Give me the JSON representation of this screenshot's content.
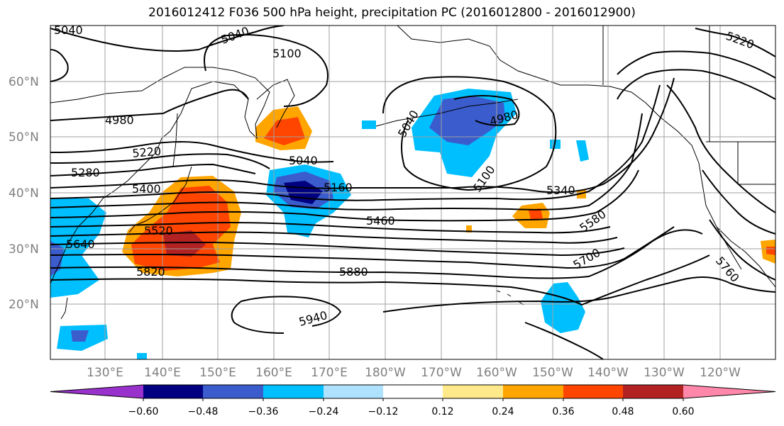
{
  "title": "2016012412 F036 500 hPa height, precipitation PC (2016012800 - 2016012900)",
  "lat_labels": [
    "60°N",
    "50°N",
    "40°N",
    "30°N",
    "20°N"
  ],
  "lon_labels": [
    "130°E",
    "140°E",
    "150°E",
    "160°E",
    "170°E",
    "180°W",
    "170°W",
    "160°W",
    "150°W",
    "140°W",
    "130°W",
    "120°W"
  ],
  "contour_labels": [
    {
      "text": "5040"
    },
    {
      "text": "5040"
    },
    {
      "text": "5100"
    },
    {
      "text": "5220"
    },
    {
      "text": "4980"
    },
    {
      "text": "5220"
    },
    {
      "text": "5280"
    },
    {
      "text": "5400"
    },
    {
      "text": "5040"
    },
    {
      "text": "5040"
    },
    {
      "text": "4980"
    },
    {
      "text": "5160"
    },
    {
      "text": "5100"
    },
    {
      "text": "5340"
    },
    {
      "text": "5460"
    },
    {
      "text": "5580"
    },
    {
      "text": "5520"
    },
    {
      "text": "5640"
    },
    {
      "text": "5700"
    },
    {
      "text": "5820"
    },
    {
      "text": "5880"
    },
    {
      "text": "5760"
    },
    {
      "text": "5940"
    }
  ],
  "colorbar": {
    "ticks": [
      "−0.60",
      "−0.48",
      "−0.36",
      "−0.24",
      "−0.12",
      "0.12",
      "0.24",
      "0.36",
      "0.48",
      "0.60"
    ],
    "colors": [
      "#9932cc",
      "#000080",
      "#3a5ccc",
      "#00bfff",
      "#aee2ff",
      "#ffffff",
      "#ffe98a",
      "#ffa500",
      "#ff4500",
      "#b22222",
      "#ff88aa"
    ]
  },
  "colors": {
    "land_line": "#000000",
    "grid": "#a0a0a0",
    "contour": "#000000"
  }
}
